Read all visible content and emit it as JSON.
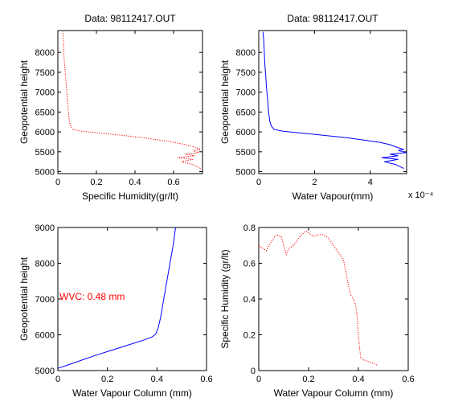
{
  "chart_data": [
    {
      "type": "line",
      "title": "Data: 98112417.OUT",
      "xlabel": "Specific Humidity(gr/lt)",
      "ylabel": "Geopotential height",
      "xlim": [
        0,
        0.75
      ],
      "ylim": [
        4950,
        8550
      ],
      "xticks": [
        "0",
        "0.2",
        "0.4",
        "0.6"
      ],
      "yticks": [
        "5000",
        "5500",
        "6000",
        "6500",
        "7000",
        "7500",
        "8000"
      ],
      "x_multiplier": "",
      "annotation": "",
      "series": [
        {
          "color": "#ff0000",
          "line_style": "dotted",
          "x": [
            0.74,
            0.7,
            0.64,
            0.7,
            0.62,
            0.71,
            0.66,
            0.73,
            0.7,
            0.74,
            0.72,
            0.66,
            0.6,
            0.45,
            0.3,
            0.2,
            0.12,
            0.08,
            0.065,
            0.06,
            0.055,
            0.05,
            0.045,
            0.04,
            0.035,
            0.03,
            0.03,
            0.025
          ],
          "y": [
            5080,
            5180,
            5250,
            5310,
            5350,
            5400,
            5440,
            5480,
            5530,
            5560,
            5600,
            5680,
            5740,
            5850,
            5930,
            5980,
            6020,
            6060,
            6150,
            6250,
            6500,
            6800,
            7100,
            7400,
            7700,
            8000,
            8300,
            8520
          ]
        }
      ]
    },
    {
      "type": "line",
      "title": "Data: 98112417.OUT",
      "xlabel": "Water Vapour(mm)",
      "ylabel": "Geopotential height",
      "xlim": [
        0,
        0.00053
      ],
      "ylim": [
        4950,
        8550
      ],
      "xticks": [
        "0",
        "2",
        "4"
      ],
      "yticks": [
        "5000",
        "5500",
        "6000",
        "6500",
        "7000",
        "7500",
        "8000"
      ],
      "x_multiplier": "x 10⁻⁴",
      "annotation": "",
      "series": [
        {
          "color": "#0000ff",
          "line_style": "solid",
          "x": [
            0.00052,
            0.00049,
            0.00045,
            0.0005,
            0.00044,
            0.0005,
            0.00047,
            0.00053,
            0.0005,
            0.00052,
            0.0005,
            0.00047,
            0.00043,
            0.00032,
            0.00021,
            0.00014,
            8.5e-05,
            5.5e-05,
            4.5e-05,
            4e-05,
            3.5e-05,
            3.2e-05,
            2.8e-05,
            2.5e-05,
            2.2e-05,
            2e-05,
            1.8e-05,
            1.5e-05
          ],
          "y": [
            5080,
            5180,
            5250,
            5310,
            5350,
            5400,
            5440,
            5480,
            5530,
            5560,
            5600,
            5680,
            5740,
            5850,
            5930,
            5980,
            6020,
            6060,
            6150,
            6250,
            6500,
            6800,
            7100,
            7400,
            7700,
            8000,
            8300,
            8520
          ]
        }
      ]
    },
    {
      "type": "line",
      "title": "",
      "xlabel": "Water Vapour Column (mm)",
      "ylabel": "Geopotential height",
      "xlim": [
        0,
        0.6
      ],
      "ylim": [
        5000,
        9000
      ],
      "xticks": [
        "0",
        "0.2",
        "0.4",
        "0.6"
      ],
      "yticks": [
        "5000",
        "6000",
        "7000",
        "8000",
        "9000"
      ],
      "x_multiplier": "",
      "annotation": "WVC: 0.48 mm",
      "annotation_color": "#ff0000",
      "series": [
        {
          "color": "#0000ff",
          "line_style": "solid",
          "x": [
            0.0,
            0.05,
            0.1,
            0.15,
            0.2,
            0.25,
            0.3,
            0.35,
            0.38,
            0.395,
            0.405,
            0.415,
            0.425,
            0.435,
            0.445,
            0.455,
            0.465,
            0.475
          ],
          "y": [
            5060,
            5180,
            5300,
            5420,
            5530,
            5640,
            5750,
            5860,
            5940,
            6020,
            6200,
            6500,
            6900,
            7300,
            7700,
            8100,
            8500,
            9000
          ]
        }
      ]
    },
    {
      "type": "line",
      "title": "",
      "xlabel": "Water Vapour Column (mm)",
      "ylabel": "Specific Humidity (gr/lt)",
      "xlim": [
        0,
        0.6
      ],
      "ylim": [
        0,
        0.8
      ],
      "xticks": [
        "0",
        "0.2",
        "0.4",
        "0.6"
      ],
      "yticks": [
        "0",
        "0.2",
        "0.4",
        "0.6",
        "0.8"
      ],
      "x_multiplier": "",
      "annotation": "",
      "series": [
        {
          "color": "#ff0000",
          "line_style": "dotted",
          "x": [
            0.0,
            0.03,
            0.05,
            0.07,
            0.09,
            0.1,
            0.11,
            0.12,
            0.14,
            0.16,
            0.18,
            0.19,
            0.2,
            0.22,
            0.24,
            0.26,
            0.28,
            0.3,
            0.32,
            0.34,
            0.35,
            0.36,
            0.37,
            0.38,
            0.39,
            0.395,
            0.4,
            0.405,
            0.41,
            0.42,
            0.44,
            0.46,
            0.475
          ],
          "y": [
            0.7,
            0.67,
            0.72,
            0.76,
            0.75,
            0.7,
            0.65,
            0.68,
            0.7,
            0.74,
            0.77,
            0.78,
            0.77,
            0.75,
            0.76,
            0.76,
            0.74,
            0.7,
            0.66,
            0.62,
            0.55,
            0.48,
            0.42,
            0.4,
            0.36,
            0.3,
            0.2,
            0.12,
            0.07,
            0.06,
            0.05,
            0.04,
            0.03
          ]
        }
      ]
    }
  ]
}
